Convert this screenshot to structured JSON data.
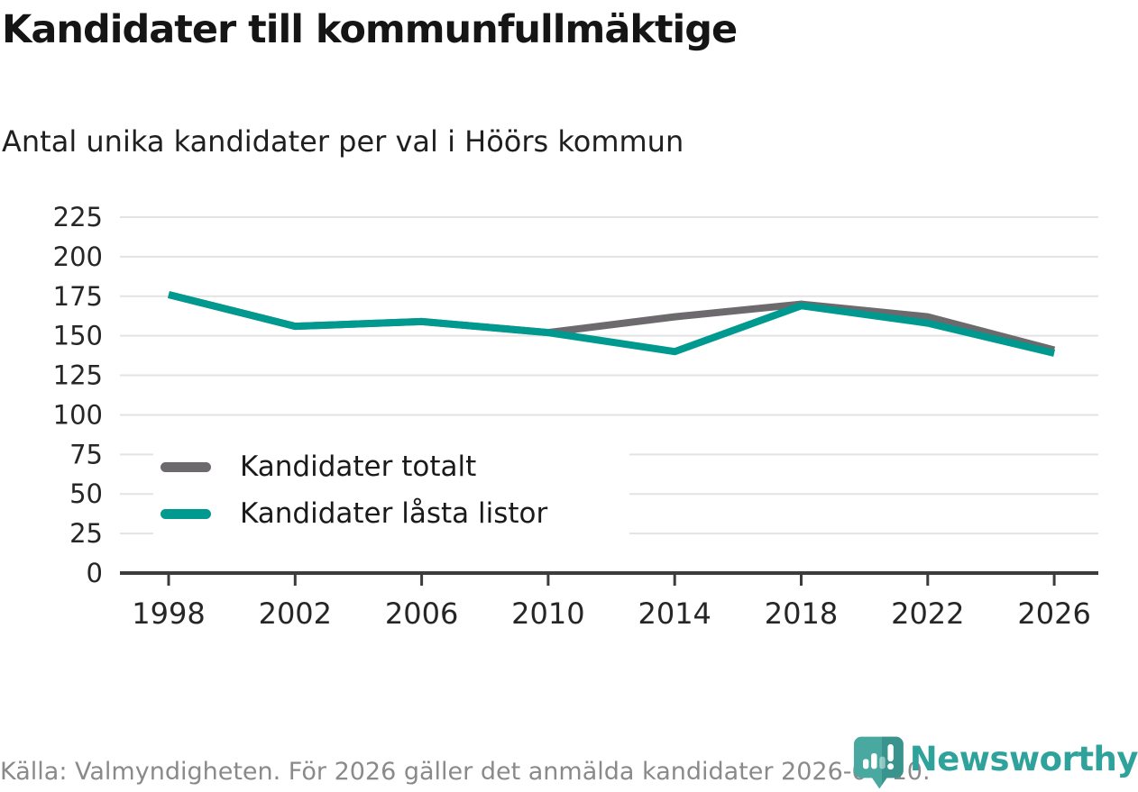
{
  "header": {
    "title": "Kandidater till kommunfullmäktige",
    "subtitle": "Antal unika kandidater per val i Höörs kommun"
  },
  "chart_data": {
    "type": "line",
    "x": [
      1998,
      2002,
      2006,
      2010,
      2014,
      2018,
      2022,
      2026
    ],
    "series": [
      {
        "name": "Kandidater totalt",
        "color": "#6d6a6e",
        "values": [
          176,
          156,
          159,
          152,
          162,
          170,
          162,
          141
        ]
      },
      {
        "name": "Kandidater låsta listor",
        "color": "#00998f",
        "values": [
          176,
          156,
          159,
          152,
          140,
          169,
          158,
          139
        ]
      }
    ],
    "ylim": [
      0,
      225
    ],
    "yticks": [
      0,
      25,
      50,
      75,
      100,
      125,
      150,
      175,
      200,
      225
    ],
    "grid": true,
    "legend_position": "inside-left-middle",
    "grid_color": "#e3e3e3",
    "axis_color": "#3c3c3c",
    "tick_label_color": "#262626"
  },
  "footer": {
    "source": "Källa: Valmyndigheten. För 2026 gäller det anmälda kandidater 2026-04-10."
  },
  "branding": {
    "logo_text": "Newsworthy",
    "logo_color": "#2fa39b",
    "logo_icon_fill": "#49a9a1",
    "logo_icon_accent": "#2e837e"
  }
}
